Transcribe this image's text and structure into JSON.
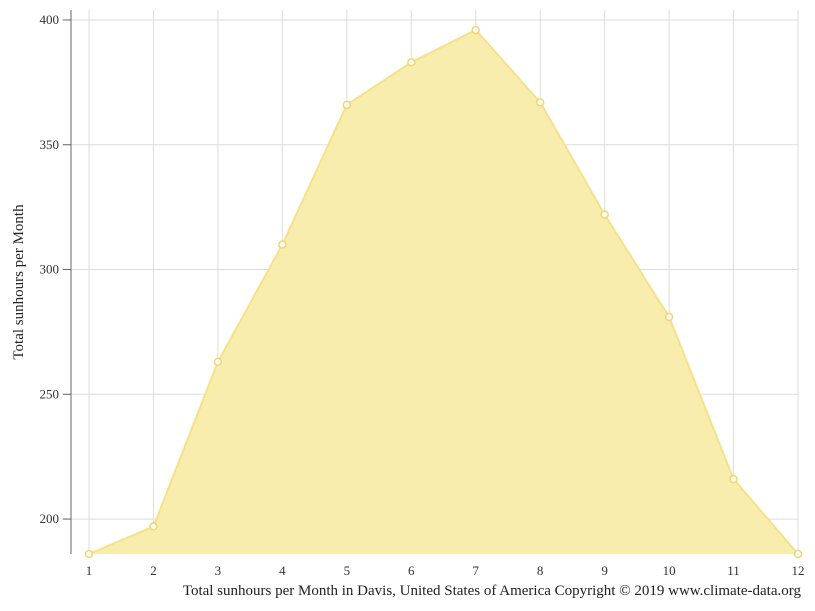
{
  "chart_data": {
    "type": "area",
    "x": [
      1,
      2,
      3,
      4,
      5,
      6,
      7,
      8,
      9,
      10,
      11,
      12
    ],
    "series": [
      {
        "values": [
          186,
          197,
          263,
          310,
          366,
          383,
          396,
          367,
          322,
          281,
          216,
          186
        ]
      }
    ],
    "xticks": [
      "1",
      "2",
      "3",
      "4",
      "5",
      "6",
      "7",
      "8",
      "9",
      "10",
      "11",
      "12"
    ],
    "yticks": [
      "200",
      "250",
      "300",
      "350",
      "400"
    ],
    "ylabel": "Total sunhours per Month",
    "xlabel": "",
    "ylim": [
      186,
      404
    ],
    "xlim": [
      1,
      12
    ],
    "grid": true,
    "colors": {
      "fill": "#f9ecaa",
      "line": "#f6e08a",
      "marker_stroke": "#f2d66a",
      "marker_fill": "#ffffff",
      "grid": "#dddddd",
      "axis": "#666666"
    }
  },
  "caption": "Total sunhours per Month in Davis, United States of America Copyright © 2019 www.climate-data.org"
}
